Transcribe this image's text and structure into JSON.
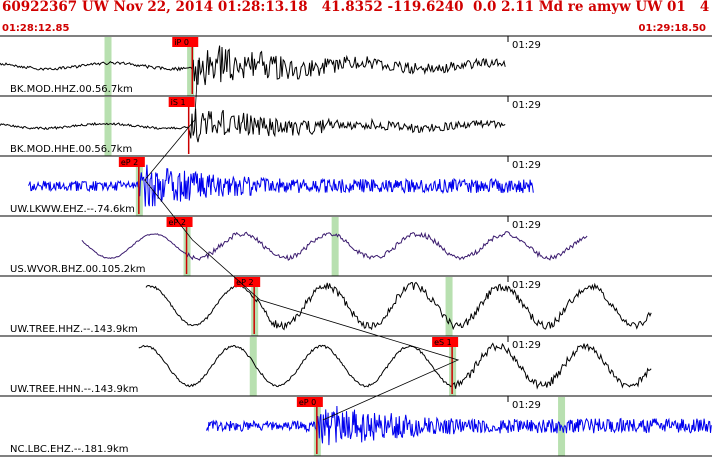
{
  "header": {
    "title": "60922367 UW Nov 22, 2014 01:28:13.18   41.8352 -119.6240  0.0 2.11 Md re amyw UW 01   4",
    "start_time": "01:28:12.85",
    "end_time": "01:29:18.50"
  },
  "colors": {
    "header_text": "#d00000",
    "pick_box": "#ff0000",
    "pick_line": "#cc0000",
    "window_shade": "#b8e0b0",
    "trace_black": "#000000",
    "trace_blue": "#0000ee",
    "trace_purple": "#3a1a6e",
    "separator": "#000000"
  },
  "time_axis": {
    "tick_label": "01:29"
  },
  "channels": [
    {
      "label": "BK.MOD.HHZ.00.56.7km",
      "pick": "iP 0",
      "pick_type": "P",
      "pick_frac": 0.27,
      "shade_fracs": [
        0.151,
        0.267
      ],
      "amplitude_level": 0.95,
      "trace_color": "black",
      "start_frac": 0.0,
      "end_frac": 0.71,
      "style": "mixed"
    },
    {
      "label": "BK.MOD.HHE.00.56.7km",
      "pick": "iS 1",
      "pick_type": "S",
      "pick_frac": 0.265,
      "shade_fracs": [
        0.151
      ],
      "amplitude_level": 0.75,
      "trace_color": "black",
      "start_frac": 0.0,
      "end_frac": 0.71,
      "style": "mixed"
    },
    {
      "label": "UW.LKWW.EHZ.--.74.6km",
      "pick": "eP 2",
      "pick_type": "P",
      "pick_frac": 0.195,
      "shade_fracs": [
        0.195
      ],
      "amplitude_level": 0.9,
      "trace_color": "blue",
      "start_frac": 0.04,
      "end_frac": 0.75,
      "style": "hf"
    },
    {
      "label": "US.WVOR.BHZ.00.105.2km",
      "pick": "eP 2",
      "pick_type": "P",
      "pick_frac": 0.262,
      "shade_fracs": [
        0.262,
        0.47
      ],
      "amplitude_level": 0.55,
      "trace_color": "purple",
      "start_frac": 0.115,
      "end_frac": 0.825,
      "style": "lf"
    },
    {
      "label": "UW.TREE.HHZ.--.143.9km",
      "pick": "eP 2",
      "pick_type": "P",
      "pick_frac": 0.357,
      "shade_fracs": [
        0.357,
        0.63
      ],
      "amplitude_level": 0.9,
      "trace_color": "black",
      "start_frac": 0.205,
      "end_frac": 0.915,
      "style": "lf"
    },
    {
      "label": "UW.TREE.HHN.--.143.9km",
      "pick": "eS 1",
      "pick_type": "S",
      "pick_frac": 0.635,
      "shade_fracs": [
        0.355,
        0.635
      ],
      "amplitude_level": 0.9,
      "trace_color": "black",
      "start_frac": 0.195,
      "end_frac": 0.915,
      "style": "lf"
    },
    {
      "label": "NC.LBC.EHZ.--.181.9km",
      "pick": "eP 0",
      "pick_type": "P",
      "pick_frac": 0.445,
      "shade_fracs": [
        0.445,
        0.788
      ],
      "amplitude_level": 0.95,
      "trace_color": "blue",
      "start_frac": 0.29,
      "end_frac": 1.0,
      "style": "hf"
    }
  ]
}
